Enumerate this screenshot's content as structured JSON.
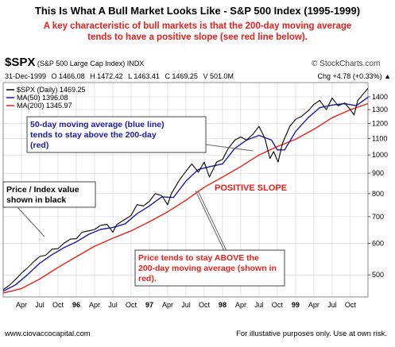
{
  "title": "This Is What A Bull Market Looks Like - S&P 500 Index (1995-1999)",
  "subtitle_lines": [
    "A key characteristic of bull markets is that the 200-day moving average",
    "tends to have a positive slope (see red line below)."
  ],
  "header": {
    "symbol": "$SPX",
    "symbol_desc": "(S&P 500 Large Cap Index) INDX",
    "brand": "© StockCharts.com",
    "date": "31-Dec-1999",
    "open": "O 1466.08",
    "high": "H 1472.42",
    "low": "L 1463.41",
    "close": "C 1469.25",
    "volume": "V 501.0M",
    "change": "Chg +4.78 (+0.33%) ▲"
  },
  "colors": {
    "price": "#000000",
    "ma50": "#1a1aa6",
    "ma200": "#e8201c",
    "grid": "#d0d0d0",
    "annotation_border": "#444444"
  },
  "chart_data": {
    "type": "line",
    "scale": "log",
    "ylim": [
      440,
      1520
    ],
    "xlim": [
      1995.0,
      1999.99
    ],
    "yticks": [
      500,
      600,
      700,
      800,
      900,
      1000,
      1100,
      1200,
      1300,
      1400
    ],
    "x_ticks": [
      {
        "t": 1995.25,
        "label": "Apr"
      },
      {
        "t": 1995.5,
        "label": "Jul"
      },
      {
        "t": 1995.75,
        "label": "Oct"
      },
      {
        "t": 1996.0,
        "label": "96"
      },
      {
        "t": 1996.25,
        "label": "Apr"
      },
      {
        "t": 1996.5,
        "label": "Jul"
      },
      {
        "t": 1996.75,
        "label": "Oct"
      },
      {
        "t": 1997.0,
        "label": "97"
      },
      {
        "t": 1997.25,
        "label": "Apr"
      },
      {
        "t": 1997.5,
        "label": "Jul"
      },
      {
        "t": 1997.75,
        "label": "Oct"
      },
      {
        "t": 1998.0,
        "label": "98"
      },
      {
        "t": 1998.25,
        "label": "Apr"
      },
      {
        "t": 1998.5,
        "label": "Jul"
      },
      {
        "t": 1998.75,
        "label": "Oct"
      },
      {
        "t": 1999.0,
        "label": "99"
      },
      {
        "t": 1999.25,
        "label": "Apr"
      },
      {
        "t": 1999.5,
        "label": "Jul"
      },
      {
        "t": 1999.75,
        "label": "Oct"
      }
    ],
    "bold_year_labels": [
      "96",
      "97",
      "98",
      "99"
    ],
    "legend": {
      "placement": "top-left",
      "entries": [
        "$SPX (Daily) 1469.25",
        "MA(50) 1396.08",
        "MA(200) 1345.97"
      ]
    },
    "series": [
      {
        "name": "$SPX (Daily)",
        "points": [
          [
            1995.0,
            459
          ],
          [
            1995.08,
            470
          ],
          [
            1995.17,
            487
          ],
          [
            1995.25,
            505
          ],
          [
            1995.33,
            520
          ],
          [
            1995.42,
            540
          ],
          [
            1995.5,
            556
          ],
          [
            1995.58,
            560
          ],
          [
            1995.67,
            580
          ],
          [
            1995.75,
            582
          ],
          [
            1995.83,
            600
          ],
          [
            1995.92,
            615
          ],
          [
            1996.0,
            616
          ],
          [
            1996.08,
            640
          ],
          [
            1996.17,
            645
          ],
          [
            1996.25,
            650
          ],
          [
            1996.33,
            665
          ],
          [
            1996.42,
            670
          ],
          [
            1996.5,
            640
          ],
          [
            1996.55,
            668
          ],
          [
            1996.67,
            690
          ],
          [
            1996.75,
            705
          ],
          [
            1996.83,
            750
          ],
          [
            1996.92,
            745
          ],
          [
            1997.0,
            765
          ],
          [
            1997.08,
            800
          ],
          [
            1997.17,
            790
          ],
          [
            1997.25,
            750
          ],
          [
            1997.3,
            800
          ],
          [
            1997.42,
            870
          ],
          [
            1997.5,
            910
          ],
          [
            1997.58,
            950
          ],
          [
            1997.67,
            905
          ],
          [
            1997.75,
            960
          ],
          [
            1997.82,
            880
          ],
          [
            1997.92,
            960
          ],
          [
            1998.0,
            975
          ],
          [
            1998.08,
            1040
          ],
          [
            1998.17,
            1090
          ],
          [
            1998.25,
            1110
          ],
          [
            1998.33,
            1090
          ],
          [
            1998.42,
            1130
          ],
          [
            1998.5,
            1180
          ],
          [
            1998.58,
            1100
          ],
          [
            1998.65,
            980
          ],
          [
            1998.7,
            1020
          ],
          [
            1998.76,
            960
          ],
          [
            1998.82,
            1070
          ],
          [
            1998.92,
            1180
          ],
          [
            1999.0,
            1229
          ],
          [
            1999.08,
            1250
          ],
          [
            1999.17,
            1290
          ],
          [
            1999.25,
            1340
          ],
          [
            1999.33,
            1370
          ],
          [
            1999.42,
            1300
          ],
          [
            1999.5,
            1390
          ],
          [
            1999.58,
            1330
          ],
          [
            1999.67,
            1350
          ],
          [
            1999.75,
            1300
          ],
          [
            1999.8,
            1260
          ],
          [
            1999.85,
            1370
          ],
          [
            1999.92,
            1420
          ],
          [
            1999.99,
            1469.25
          ]
        ]
      },
      {
        "name": "MA(50)",
        "points": [
          [
            1995.0,
            455
          ],
          [
            1995.17,
            472
          ],
          [
            1995.33,
            500
          ],
          [
            1995.5,
            535
          ],
          [
            1995.67,
            562
          ],
          [
            1995.83,
            585
          ],
          [
            1996.0,
            605
          ],
          [
            1996.17,
            632
          ],
          [
            1996.33,
            650
          ],
          [
            1996.5,
            658
          ],
          [
            1996.67,
            672
          ],
          [
            1996.83,
            712
          ],
          [
            1997.0,
            745
          ],
          [
            1997.17,
            785
          ],
          [
            1997.33,
            782
          ],
          [
            1997.5,
            860
          ],
          [
            1997.67,
            920
          ],
          [
            1997.83,
            935
          ],
          [
            1998.0,
            950
          ],
          [
            1998.17,
            1040
          ],
          [
            1998.33,
            1090
          ],
          [
            1998.5,
            1120
          ],
          [
            1998.67,
            1090
          ],
          [
            1998.75,
            1030
          ],
          [
            1998.85,
            1030
          ],
          [
            1999.0,
            1145
          ],
          [
            1999.17,
            1240
          ],
          [
            1999.33,
            1315
          ],
          [
            1999.5,
            1335
          ],
          [
            1999.67,
            1345
          ],
          [
            1999.83,
            1330
          ],
          [
            1999.99,
            1396.08
          ]
        ]
      },
      {
        "name": "MA(200)",
        "points": [
          [
            1995.0,
            450
          ],
          [
            1995.25,
            462
          ],
          [
            1995.5,
            488
          ],
          [
            1995.75,
            522
          ],
          [
            1996.0,
            555
          ],
          [
            1996.25,
            590
          ],
          [
            1996.5,
            618
          ],
          [
            1996.75,
            645
          ],
          [
            1997.0,
            680
          ],
          [
            1997.25,
            720
          ],
          [
            1997.5,
            770
          ],
          [
            1997.75,
            830
          ],
          [
            1998.0,
            880
          ],
          [
            1998.25,
            935
          ],
          [
            1998.5,
            1000
          ],
          [
            1998.75,
            1050
          ],
          [
            1999.0,
            1095
          ],
          [
            1999.25,
            1160
          ],
          [
            1999.5,
            1240
          ],
          [
            1999.75,
            1300
          ],
          [
            1999.99,
            1345.97
          ]
        ]
      }
    ]
  },
  "annotations": {
    "ma50_box": [
      "50-day moving average (blue line)",
      "tends to stay above the 200-day",
      "(red)"
    ],
    "price_box": [
      "Price / Index value",
      "shown in black"
    ],
    "positive_slope": "POSITIVE SLOPE",
    "above_box": [
      "Price tends to stay ABOVE the",
      "200-day moving average (shown in",
      "red)."
    ]
  },
  "footer": {
    "left": "www.ciovaccocapital.com",
    "right": "For illustative purposes only.  Use at own risk."
  }
}
